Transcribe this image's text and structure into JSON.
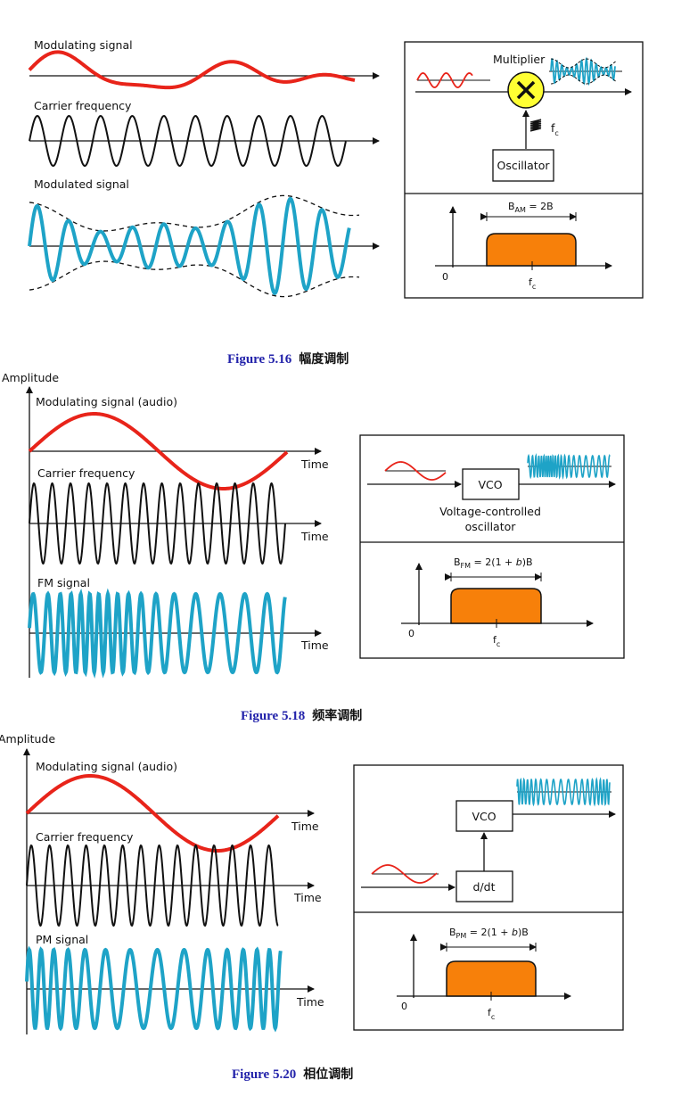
{
  "colors": {
    "modulating": "#e8241a",
    "carrier": "#111111",
    "modulated": "#1ea3c7",
    "band": "#f7800a",
    "caption": "#2222aa"
  },
  "figure_am": {
    "labels": {
      "modulating": "Modulating signal",
      "carrier": "Carrier frequency",
      "modulated": "Modulated signal"
    },
    "block": {
      "multiplier": "Multiplier",
      "oscillator": "Oscillator",
      "fc_main": "f",
      "fc_sub": "c"
    },
    "bandwidth": {
      "B_main": "B",
      "B_sub": "AM",
      "rest": " = 2B",
      "origin": "0",
      "fc_main": "f",
      "fc_sub": "c"
    },
    "caption": {
      "figure": "Figure 5.16",
      "title": "幅度调制"
    }
  },
  "figure_fm": {
    "axis_label": "Amplitude",
    "labels": {
      "modulating": "Modulating signal (audio)",
      "carrier": "Carrier frequency",
      "modulated": "FM signal",
      "time": "Time"
    },
    "block": {
      "vco": "VCO",
      "vco_desc_1": "Voltage-controlled",
      "vco_desc_2": "oscillator"
    },
    "bandwidth": {
      "B_main": "B",
      "B_sub": "FM",
      "pre": " = 2(1 + ",
      "beta": "b",
      "post": ")B",
      "origin": "0",
      "fc_main": "f",
      "fc_sub": "c"
    },
    "caption": {
      "figure": "Figure 5.18",
      "title": "频率调制"
    }
  },
  "figure_pm": {
    "axis_label": "Amplitude",
    "labels": {
      "modulating": "Modulating signal (audio)",
      "carrier": "Carrier frequency",
      "modulated": "PM signal",
      "time": "Time"
    },
    "block": {
      "vco": "VCO",
      "ddt": "d/dt"
    },
    "bandwidth": {
      "B_main": "B",
      "B_sub": "PM",
      "pre": " = 2(1 + ",
      "beta": "b",
      "post": ")B",
      "origin": "0",
      "fc_main": "f",
      "fc_sub": "c"
    },
    "caption": {
      "figure": "Figure 5.20",
      "title": "相位调制"
    }
  }
}
